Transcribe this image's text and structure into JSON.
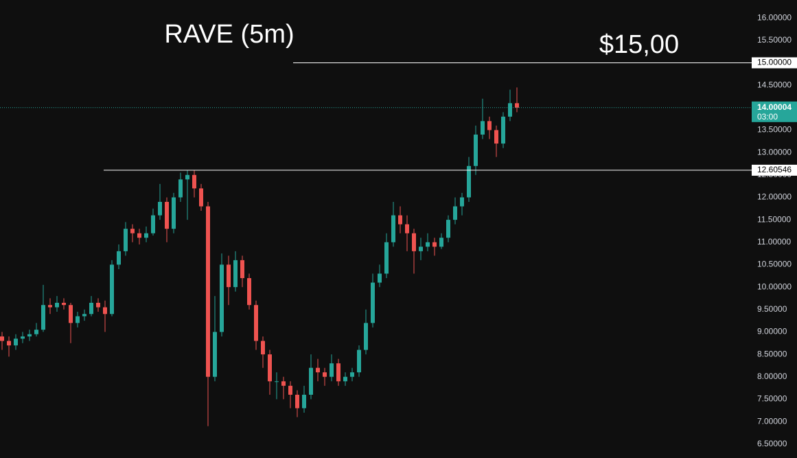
{
  "chart_data": {
    "type": "candlestick",
    "title": "RAVE (5m)",
    "annotation": "$15,00",
    "up_color": "#26a69a",
    "down_color": "#ef5350",
    "ylim": [
      6.19,
      16.4
    ],
    "yticks": [
      {
        "value": 16.0,
        "label": "16.00000"
      },
      {
        "value": 15.5,
        "label": "15.50000"
      },
      {
        "value": 15.0,
        "label": "15.00000"
      },
      {
        "value": 14.5,
        "label": "14.50000"
      },
      {
        "value": 14.0,
        "label": "14.00000"
      },
      {
        "value": 13.5,
        "label": "13.50000"
      },
      {
        "value": 13.0,
        "label": "13.00000"
      },
      {
        "value": 12.5,
        "label": "12.50000"
      },
      {
        "value": 12.0,
        "label": "12.00000"
      },
      {
        "value": 11.5,
        "label": "11.50000"
      },
      {
        "value": 11.0,
        "label": "11.00000"
      },
      {
        "value": 10.5,
        "label": "10.50000"
      },
      {
        "value": 10.0,
        "label": "10.00000"
      },
      {
        "value": 9.5,
        "label": "9.50000"
      },
      {
        "value": 9.0,
        "label": "9.00000"
      },
      {
        "value": 8.5,
        "label": "8.50000"
      },
      {
        "value": 8.0,
        "label": "8.00000"
      },
      {
        "value": 7.5,
        "label": "7.50000"
      },
      {
        "value": 7.0,
        "label": "7.00000"
      },
      {
        "value": 6.5,
        "label": "6.50000"
      }
    ],
    "price_lines": [
      {
        "value": 15.0,
        "label": "15.00000"
      },
      {
        "value": 12.60546,
        "label": "12.60546"
      }
    ],
    "last_price": {
      "value": 14.00004,
      "label": "14.00004",
      "countdown": "03:00",
      "color": "#26a69a"
    },
    "candles": [
      [
        8.9,
        9.0,
        8.6,
        8.8
      ],
      [
        8.8,
        8.9,
        8.45,
        8.7
      ],
      [
        8.7,
        8.95,
        8.6,
        8.85
      ],
      [
        8.85,
        9.0,
        8.75,
        8.9
      ],
      [
        8.9,
        9.05,
        8.8,
        8.95
      ],
      [
        8.95,
        9.2,
        8.9,
        9.05
      ],
      [
        9.05,
        10.05,
        9.0,
        9.6
      ],
      [
        9.6,
        9.75,
        9.4,
        9.55
      ],
      [
        9.55,
        9.8,
        9.45,
        9.65
      ],
      [
        9.65,
        9.75,
        9.5,
        9.6
      ],
      [
        9.6,
        9.65,
        8.75,
        9.2
      ],
      [
        9.2,
        9.45,
        9.1,
        9.35
      ],
      [
        9.35,
        9.5,
        9.25,
        9.4
      ],
      [
        9.4,
        9.8,
        9.35,
        9.65
      ],
      [
        9.65,
        9.75,
        9.45,
        9.55
      ],
      [
        9.55,
        9.7,
        9.0,
        9.4
      ],
      [
        9.4,
        10.6,
        9.35,
        10.5
      ],
      [
        10.5,
        10.95,
        10.4,
        10.8
      ],
      [
        10.8,
        11.45,
        10.7,
        11.3
      ],
      [
        11.3,
        11.4,
        11.0,
        11.2
      ],
      [
        11.2,
        11.3,
        10.95,
        11.1
      ],
      [
        11.1,
        11.35,
        11.0,
        11.2
      ],
      [
        11.2,
        11.75,
        11.15,
        11.6
      ],
      [
        11.6,
        12.3,
        11.5,
        11.9
      ],
      [
        11.9,
        12.0,
        11.0,
        11.3
      ],
      [
        11.3,
        12.1,
        11.2,
        12.0
      ],
      [
        12.0,
        12.55,
        11.9,
        12.4
      ],
      [
        12.4,
        12.6,
        11.5,
        12.5
      ],
      [
        12.5,
        12.6,
        12.0,
        12.2
      ],
      [
        12.2,
        12.3,
        11.7,
        11.8
      ],
      [
        11.8,
        11.9,
        6.9,
        8.0
      ],
      [
        8.0,
        9.8,
        7.9,
        9.0
      ],
      [
        9.0,
        10.75,
        8.9,
        10.5
      ],
      [
        10.5,
        10.7,
        9.6,
        10.0
      ],
      [
        10.0,
        10.8,
        9.9,
        10.6
      ],
      [
        10.6,
        10.7,
        10.0,
        10.2
      ],
      [
        10.2,
        10.3,
        9.5,
        9.6
      ],
      [
        9.6,
        9.7,
        8.6,
        8.8
      ],
      [
        8.8,
        8.9,
        8.2,
        8.5
      ],
      [
        8.5,
        8.6,
        7.6,
        7.9
      ],
      [
        7.9,
        8.1,
        7.5,
        7.9
      ],
      [
        7.9,
        8.0,
        7.5,
        7.8
      ],
      [
        7.8,
        7.9,
        7.3,
        7.6
      ],
      [
        7.6,
        7.7,
        7.1,
        7.3
      ],
      [
        7.3,
        7.8,
        7.2,
        7.6
      ],
      [
        7.6,
        8.5,
        7.5,
        8.2
      ],
      [
        8.2,
        8.4,
        7.9,
        8.1
      ],
      [
        8.1,
        8.2,
        7.8,
        8.0
      ],
      [
        8.0,
        8.5,
        7.9,
        8.3
      ],
      [
        8.3,
        8.4,
        7.8,
        7.9
      ],
      [
        7.9,
        8.1,
        7.8,
        8.0
      ],
      [
        8.0,
        8.2,
        7.9,
        8.1
      ],
      [
        8.1,
        8.7,
        8.0,
        8.6
      ],
      [
        8.6,
        9.5,
        8.5,
        9.2
      ],
      [
        9.2,
        10.3,
        9.1,
        10.1
      ],
      [
        10.1,
        10.5,
        10.0,
        10.3
      ],
      [
        10.3,
        11.2,
        10.2,
        11.0
      ],
      [
        11.0,
        11.9,
        10.9,
        11.6
      ],
      [
        11.6,
        11.8,
        11.2,
        11.4
      ],
      [
        11.4,
        11.6,
        10.8,
        11.2
      ],
      [
        11.2,
        11.3,
        10.3,
        10.8
      ],
      [
        10.8,
        11.1,
        10.6,
        10.9
      ],
      [
        10.9,
        11.2,
        10.8,
        11.0
      ],
      [
        11.0,
        11.1,
        10.7,
        10.9
      ],
      [
        10.9,
        11.2,
        10.85,
        11.1
      ],
      [
        11.1,
        11.6,
        11.0,
        11.5
      ],
      [
        11.5,
        12.0,
        11.4,
        11.8
      ],
      [
        11.8,
        12.1,
        11.6,
        12.0
      ],
      [
        12.0,
        12.9,
        11.9,
        12.7
      ],
      [
        12.7,
        13.6,
        12.5,
        13.4
      ],
      [
        13.4,
        14.2,
        13.3,
        13.7
      ],
      [
        13.7,
        13.8,
        13.3,
        13.5
      ],
      [
        13.5,
        13.6,
        12.9,
        13.2
      ],
      [
        13.2,
        13.9,
        13.1,
        13.8
      ],
      [
        13.8,
        14.4,
        13.7,
        14.1
      ],
      [
        14.1,
        14.45,
        13.9,
        14.0
      ]
    ]
  }
}
